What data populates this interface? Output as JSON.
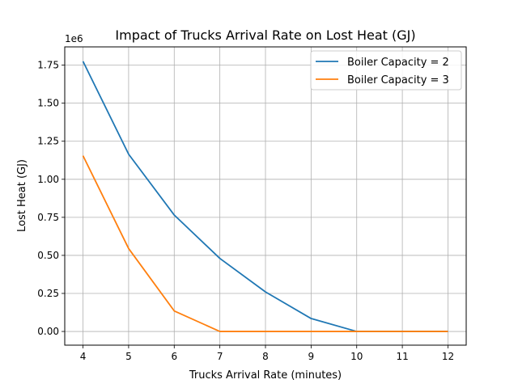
{
  "chart_data": {
    "type": "line",
    "title": "Impact of Trucks Arrival Rate on Lost Heat (GJ)",
    "xlabel": "Trucks Arrival Rate (minutes)",
    "ylabel": "Lost Heat (GJ)",
    "y_offset_label": "1e6",
    "x": [
      4,
      5,
      6,
      7,
      8,
      9,
      10,
      11,
      12
    ],
    "xticks": [
      "4",
      "5",
      "6",
      "7",
      "8",
      "9",
      "10",
      "11",
      "12"
    ],
    "yticks": [
      "0.00",
      "0.25",
      "0.50",
      "0.75",
      "1.00",
      "1.25",
      "1.50",
      "1.75"
    ],
    "xlim": [
      3.6,
      12.4
    ],
    "ylim": [
      -0.09,
      1.87
    ],
    "y_scale_note": "values in units of 1e6",
    "grid": true,
    "legend_position": "top-right",
    "series": [
      {
        "name": "Boiler Capacity = 2",
        "color": "#1f77b4",
        "values": [
          1.775,
          1.165,
          0.765,
          0.48,
          0.26,
          0.085,
          0.0,
          0.0,
          0.0
        ]
      },
      {
        "name": "Boiler Capacity = 3",
        "color": "#ff7f0e",
        "values": [
          1.155,
          0.545,
          0.135,
          0.0,
          0.0,
          0.0,
          0.0,
          0.0,
          0.0
        ]
      }
    ]
  }
}
